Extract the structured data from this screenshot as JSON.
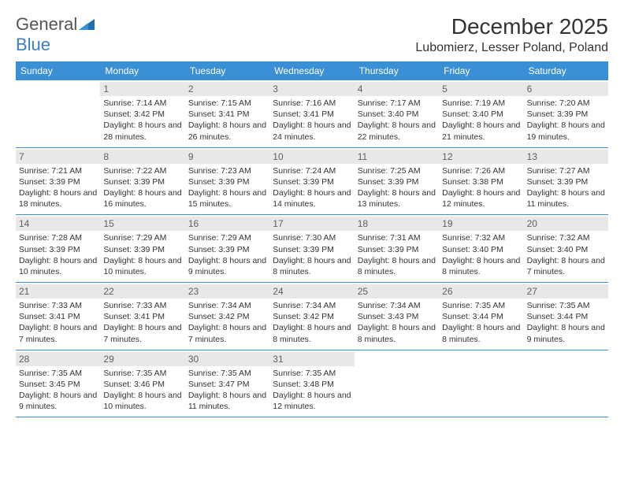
{
  "logo": {
    "text1": "General",
    "text2": "Blue"
  },
  "title": "December 2025",
  "location": "Lubomierz, Lesser Poland, Poland",
  "colors": {
    "header_bg": "#3b8fd4",
    "header_text": "#ffffff",
    "daynum_bg": "#e8e8e8",
    "daynum_text": "#606060",
    "rule": "#3b8fd4",
    "logo_gray": "#555555",
    "logo_blue": "#3b7fc4",
    "body_text": "#333333",
    "page_bg": "#ffffff"
  },
  "days_of_week": [
    "Sunday",
    "Monday",
    "Tuesday",
    "Wednesday",
    "Thursday",
    "Friday",
    "Saturday"
  ],
  "weeks": [
    [
      null,
      {
        "n": "1",
        "sr": "Sunrise: 7:14 AM",
        "ss": "Sunset: 3:42 PM",
        "dl": "Daylight: 8 hours and 28 minutes."
      },
      {
        "n": "2",
        "sr": "Sunrise: 7:15 AM",
        "ss": "Sunset: 3:41 PM",
        "dl": "Daylight: 8 hours and 26 minutes."
      },
      {
        "n": "3",
        "sr": "Sunrise: 7:16 AM",
        "ss": "Sunset: 3:41 PM",
        "dl": "Daylight: 8 hours and 24 minutes."
      },
      {
        "n": "4",
        "sr": "Sunrise: 7:17 AM",
        "ss": "Sunset: 3:40 PM",
        "dl": "Daylight: 8 hours and 22 minutes."
      },
      {
        "n": "5",
        "sr": "Sunrise: 7:19 AM",
        "ss": "Sunset: 3:40 PM",
        "dl": "Daylight: 8 hours and 21 minutes."
      },
      {
        "n": "6",
        "sr": "Sunrise: 7:20 AM",
        "ss": "Sunset: 3:39 PM",
        "dl": "Daylight: 8 hours and 19 minutes."
      }
    ],
    [
      {
        "n": "7",
        "sr": "Sunrise: 7:21 AM",
        "ss": "Sunset: 3:39 PM",
        "dl": "Daylight: 8 hours and 18 minutes."
      },
      {
        "n": "8",
        "sr": "Sunrise: 7:22 AM",
        "ss": "Sunset: 3:39 PM",
        "dl": "Daylight: 8 hours and 16 minutes."
      },
      {
        "n": "9",
        "sr": "Sunrise: 7:23 AM",
        "ss": "Sunset: 3:39 PM",
        "dl": "Daylight: 8 hours and 15 minutes."
      },
      {
        "n": "10",
        "sr": "Sunrise: 7:24 AM",
        "ss": "Sunset: 3:39 PM",
        "dl": "Daylight: 8 hours and 14 minutes."
      },
      {
        "n": "11",
        "sr": "Sunrise: 7:25 AM",
        "ss": "Sunset: 3:39 PM",
        "dl": "Daylight: 8 hours and 13 minutes."
      },
      {
        "n": "12",
        "sr": "Sunrise: 7:26 AM",
        "ss": "Sunset: 3:38 PM",
        "dl": "Daylight: 8 hours and 12 minutes."
      },
      {
        "n": "13",
        "sr": "Sunrise: 7:27 AM",
        "ss": "Sunset: 3:39 PM",
        "dl": "Daylight: 8 hours and 11 minutes."
      }
    ],
    [
      {
        "n": "14",
        "sr": "Sunrise: 7:28 AM",
        "ss": "Sunset: 3:39 PM",
        "dl": "Daylight: 8 hours and 10 minutes."
      },
      {
        "n": "15",
        "sr": "Sunrise: 7:29 AM",
        "ss": "Sunset: 3:39 PM",
        "dl": "Daylight: 8 hours and 10 minutes."
      },
      {
        "n": "16",
        "sr": "Sunrise: 7:29 AM",
        "ss": "Sunset: 3:39 PM",
        "dl": "Daylight: 8 hours and 9 minutes."
      },
      {
        "n": "17",
        "sr": "Sunrise: 7:30 AM",
        "ss": "Sunset: 3:39 PM",
        "dl": "Daylight: 8 hours and 8 minutes."
      },
      {
        "n": "18",
        "sr": "Sunrise: 7:31 AM",
        "ss": "Sunset: 3:39 PM",
        "dl": "Daylight: 8 hours and 8 minutes."
      },
      {
        "n": "19",
        "sr": "Sunrise: 7:32 AM",
        "ss": "Sunset: 3:40 PM",
        "dl": "Daylight: 8 hours and 8 minutes."
      },
      {
        "n": "20",
        "sr": "Sunrise: 7:32 AM",
        "ss": "Sunset: 3:40 PM",
        "dl": "Daylight: 8 hours and 7 minutes."
      }
    ],
    [
      {
        "n": "21",
        "sr": "Sunrise: 7:33 AM",
        "ss": "Sunset: 3:41 PM",
        "dl": "Daylight: 8 hours and 7 minutes."
      },
      {
        "n": "22",
        "sr": "Sunrise: 7:33 AM",
        "ss": "Sunset: 3:41 PM",
        "dl": "Daylight: 8 hours and 7 minutes."
      },
      {
        "n": "23",
        "sr": "Sunrise: 7:34 AM",
        "ss": "Sunset: 3:42 PM",
        "dl": "Daylight: 8 hours and 7 minutes."
      },
      {
        "n": "24",
        "sr": "Sunrise: 7:34 AM",
        "ss": "Sunset: 3:42 PM",
        "dl": "Daylight: 8 hours and 8 minutes."
      },
      {
        "n": "25",
        "sr": "Sunrise: 7:34 AM",
        "ss": "Sunset: 3:43 PM",
        "dl": "Daylight: 8 hours and 8 minutes."
      },
      {
        "n": "26",
        "sr": "Sunrise: 7:35 AM",
        "ss": "Sunset: 3:44 PM",
        "dl": "Daylight: 8 hours and 8 minutes."
      },
      {
        "n": "27",
        "sr": "Sunrise: 7:35 AM",
        "ss": "Sunset: 3:44 PM",
        "dl": "Daylight: 8 hours and 9 minutes."
      }
    ],
    [
      {
        "n": "28",
        "sr": "Sunrise: 7:35 AM",
        "ss": "Sunset: 3:45 PM",
        "dl": "Daylight: 8 hours and 9 minutes."
      },
      {
        "n": "29",
        "sr": "Sunrise: 7:35 AM",
        "ss": "Sunset: 3:46 PM",
        "dl": "Daylight: 8 hours and 10 minutes."
      },
      {
        "n": "30",
        "sr": "Sunrise: 7:35 AM",
        "ss": "Sunset: 3:47 PM",
        "dl": "Daylight: 8 hours and 11 minutes."
      },
      {
        "n": "31",
        "sr": "Sunrise: 7:35 AM",
        "ss": "Sunset: 3:48 PM",
        "dl": "Daylight: 8 hours and 12 minutes."
      },
      null,
      null,
      null
    ]
  ]
}
